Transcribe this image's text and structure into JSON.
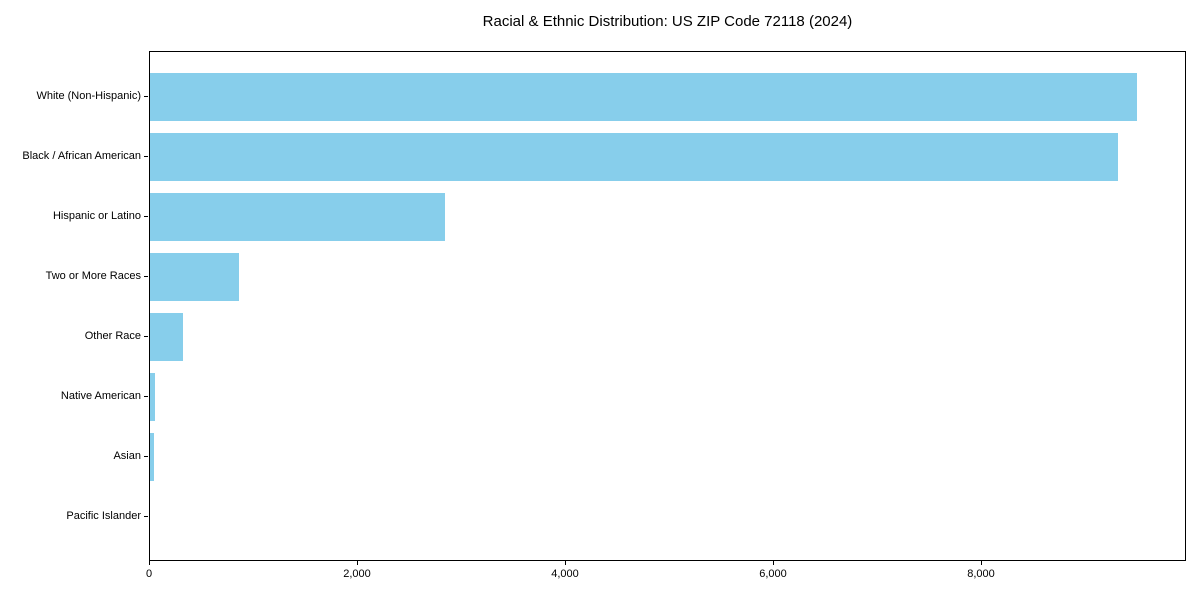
{
  "figure": {
    "background": "#ffffff",
    "frame_color": "#000000",
    "text_color": "#000000"
  },
  "chart_data": {
    "type": "bar",
    "orientation": "horizontal",
    "title": "Racial & Ethnic Distribution: US ZIP Code 72118 (2024)",
    "categories": [
      "White (Non-Hispanic)",
      "Black / African American",
      "Hispanic or Latino",
      "Two or More Races",
      "Other Race",
      "Native American",
      "Asian",
      "Pacific Islander"
    ],
    "values": [
      9490,
      9310,
      2840,
      855,
      315,
      50,
      35,
      0
    ],
    "xlabel": "",
    "ylabel": "",
    "xlim": [
      0,
      9970
    ],
    "x_ticks": [
      0,
      2000,
      4000,
      6000,
      8000
    ],
    "x_tick_labels": [
      "0",
      "2,000",
      "4,000",
      "6,000",
      "8,000"
    ],
    "bar_color": "#87CEEB",
    "grid": false,
    "legend": null,
    "value_labels": false
  }
}
